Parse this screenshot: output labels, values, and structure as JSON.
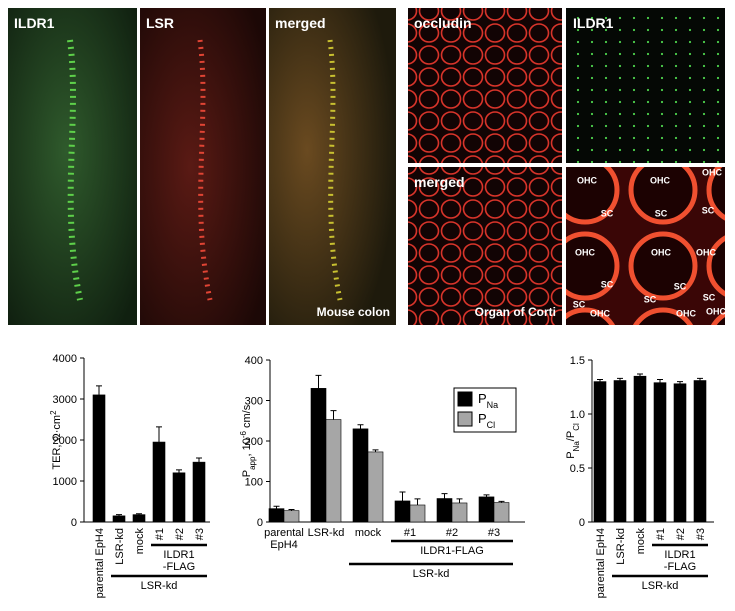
{
  "panels": {
    "left": [
      "ILDR1",
      "LSR",
      "merged"
    ],
    "left_caption": "Mouse colon",
    "right": [
      "occludin",
      "ILDR1",
      "merged"
    ],
    "right_caption": "Organ of Corti",
    "cells": [
      "OHC",
      "OHC",
      "OHC",
      "SC",
      "SC",
      "SC",
      "OHC",
      "OHC",
      "OHC",
      "SC",
      "SC",
      "SC",
      "SC",
      "SC",
      "OHC",
      "OHC",
      "OHC"
    ]
  },
  "chart_data": [
    {
      "type": "bar",
      "ylabel": {
        "text": "TER, Ω·cm",
        "sup": "2"
      },
      "categories": [
        "parental EpH4",
        "LSR-kd",
        "mock",
        "#1",
        "#2",
        "#3"
      ],
      "series": [
        {
          "color": "#000000",
          "values": [
            3100,
            150,
            180,
            1950,
            1200,
            1460
          ],
          "errors": [
            220,
            30,
            20,
            370,
            70,
            100
          ]
        }
      ],
      "group_labels": [
        "ILDR1 -FLAG",
        "LSR-kd"
      ],
      "ylim": [
        0,
        4000
      ],
      "yticks": [
        0,
        1000,
        2000,
        3000,
        4000
      ]
    },
    {
      "type": "bar",
      "ylabel": {
        "text": "P",
        "sub": "app",
        "text2": ", 10",
        "sup": "-6",
        "text3": " cm/s"
      },
      "categories": [
        "parental EpH4",
        "LSR-kd",
        "mock",
        "#1",
        "#2",
        "#3"
      ],
      "series": [
        {
          "name": "P",
          "sub": "Na",
          "color": "#000000",
          "values": [
            33,
            330,
            230,
            52,
            58,
            62
          ],
          "errors": [
            6,
            32,
            10,
            22,
            12,
            5
          ]
        },
        {
          "name": "P",
          "sub": "Cl",
          "color": "#a6a6a6",
          "values": [
            28,
            253,
            173,
            42,
            47,
            48
          ],
          "errors": [
            3,
            22,
            5,
            15,
            10,
            3
          ]
        }
      ],
      "group_labels": [
        "ILDR1-FLAG",
        "LSR-kd"
      ],
      "ylim": [
        0,
        400
      ],
      "yticks": [
        0,
        100,
        200,
        300,
        400
      ]
    },
    {
      "type": "bar",
      "ylabel": {
        "text": "P",
        "sub": "Na",
        "text2": "/P",
        "sub2": "Cl"
      },
      "categories": [
        "parental EpH4",
        "LSR-kd",
        "mock",
        "#1",
        "#2",
        "#3"
      ],
      "series": [
        {
          "color": "#000000",
          "values": [
            1.3,
            1.31,
            1.35,
            1.29,
            1.28,
            1.31
          ],
          "errors": [
            0.02,
            0.02,
            0.02,
            0.03,
            0.02,
            0.02
          ]
        }
      ],
      "group_labels": [
        "ILDR1 -FLAG",
        "LSR-kd"
      ],
      "ylim": [
        0,
        1.5
      ],
      "yticks": [
        0,
        {
          "value": 0.5,
          "label": "0.5"
        },
        {
          "value": 1,
          "label": "1.0"
        },
        {
          "value": 1.5,
          "label": "1.5"
        }
      ]
    }
  ]
}
